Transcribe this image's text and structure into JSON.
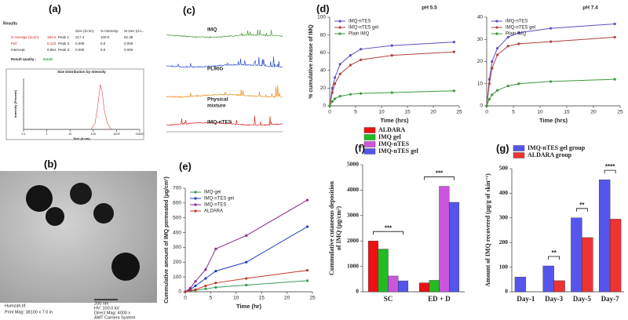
{
  "panel_labels": [
    "(a)",
    "(b)",
    "(c)",
    "(d)",
    "(e)",
    "(f)",
    "(g)"
  ],
  "dls": {
    "heading": "Results",
    "columns": [
      "Size (d.nm):",
      "% Intensity:",
      "St Dev (d.n..."
    ],
    "summary": [
      [
        "Z-Average (d.nm):",
        "190.5"
      ],
      [
        "PdI:",
        "0.123"
      ],
      [
        "Intercept:",
        "0.954"
      ]
    ],
    "peaks": [
      [
        "Peak 1:",
        "217.4",
        "100.0",
        "82.38"
      ],
      [
        "Peak 2:",
        "0.000",
        "0.0",
        "0.000"
      ],
      [
        "Peak 3:",
        "0.000",
        "0.0",
        "0.000"
      ]
    ],
    "quality": [
      "Result quality :",
      "Good"
    ]
  },
  "tem": {
    "file": "Humzah.tif",
    "print_mag": "Print Mag: 38100 x 7.0 in",
    "scale": "200 nm",
    "hv": "HV: 100.0 kV",
    "direct_mag": "Direct Mag: 4000 x",
    "camera": "AMT Camera System"
  },
  "ftir": {
    "labels": [
      [
        "IMQ"
      ],
      [
        "PL90G"
      ],
      [
        "Physical",
        "mixture"
      ],
      [
        "IMQ-nTES"
      ]
    ]
  },
  "chart_data": [
    {
      "type": "line",
      "title": "Size Distribution by Intensity",
      "x_label": "Size (d.nm)",
      "y_label": "Intensity (Percent)",
      "log_x": true,
      "xlim": [
        0.1,
        10000
      ],
      "xticks": [
        0.1,
        1,
        10,
        100,
        1000,
        10000
      ],
      "ylim": [
        0,
        16
      ],
      "x": [
        80,
        120,
        160,
        200,
        240,
        300,
        400,
        600
      ],
      "values": [
        0,
        2,
        8,
        14,
        12,
        6,
        2,
        0
      ],
      "color": "#e04040"
    },
    {
      "type": "line",
      "title": "pH 5.5",
      "x_label": "Time (hrs)",
      "y_label": "% cumulative release of IMQ",
      "xlim": [
        0,
        25
      ],
      "xticks": [
        0,
        5,
        10,
        15,
        20,
        25
      ],
      "ylim": [
        0,
        100
      ],
      "yticks": [
        0,
        20,
        40,
        60,
        80,
        100
      ],
      "legend": "upper left",
      "x": [
        0,
        0.5,
        1,
        2,
        4,
        6,
        12,
        24
      ],
      "series": [
        {
          "name": "IMQ-nTES",
          "color": "#5b4fbf",
          "values": [
            0,
            20,
            32,
            47,
            57,
            64,
            68,
            72
          ]
        },
        {
          "name": "IMQ-nTES gel",
          "color": "#b0413e",
          "values": [
            0,
            15,
            25,
            36,
            46,
            52,
            57,
            61
          ]
        },
        {
          "name": "Plain IMQ",
          "color": "#3a9a3a",
          "values": [
            0,
            5,
            8,
            11,
            13,
            14,
            15,
            17
          ]
        }
      ]
    },
    {
      "type": "line",
      "title": "pH 7.4",
      "x_label": "Time (hrs)",
      "xlim": [
        0,
        25
      ],
      "xticks": [
        0,
        5,
        10,
        15,
        20,
        25
      ],
      "ylim": [
        0,
        40
      ],
      "yticks": [
        0,
        10,
        20,
        30,
        40
      ],
      "legend": "upper left",
      "x": [
        0,
        0.5,
        1,
        2,
        4,
        6,
        12,
        24
      ],
      "series": [
        {
          "name": "IMQ-nTES",
          "color": "#5b4fbf",
          "values": [
            0,
            12,
            20,
            26,
            31,
            33,
            35,
            37
          ]
        },
        {
          "name": "IMQ-nTES gel",
          "color": "#b0413e",
          "values": [
            0,
            10,
            17,
            23,
            27,
            28,
            29,
            31
          ]
        },
        {
          "name": "Plain IMQ",
          "color": "#3a9a3a",
          "values": [
            0,
            3,
            5,
            7,
            9,
            10,
            11,
            12
          ]
        }
      ]
    },
    {
      "type": "line",
      "x_label": "Time (hr)",
      "y_label": "Cummulative amount of IMQ permeated  (µg/cm²)",
      "xlim": [
        0,
        25
      ],
      "xticks": [
        0,
        5,
        10,
        15,
        20,
        25
      ],
      "ylim": [
        0,
        700
      ],
      "yticks": [
        0,
        100,
        200,
        300,
        400,
        500,
        600,
        700
      ],
      "legend": "upper left",
      "x": [
        0,
        1,
        2,
        4,
        6,
        12,
        24
      ],
      "series": [
        {
          "name": "IMQ-gel",
          "color": "#3a9a5a",
          "values": [
            0,
            5,
            10,
            20,
            30,
            45,
            75
          ]
        },
        {
          "name": "IMQ-nTES gel",
          "color": "#1f3fbf",
          "values": [
            0,
            15,
            40,
            90,
            140,
            200,
            440
          ]
        },
        {
          "name": "IMQ-nTES",
          "color": "#8a2a8a",
          "values": [
            0,
            25,
            70,
            150,
            290,
            380,
            620
          ]
        },
        {
          "name": "ALDARA",
          "color": "#c0392b",
          "values": [
            0,
            8,
            15,
            40,
            60,
            90,
            145
          ]
        }
      ]
    },
    {
      "type": "bar",
      "y_label": [
        "Cummulative cutaneous deposition",
        "of IMQ (µg/cm²)"
      ],
      "categories": [
        "SC",
        "ED + D"
      ],
      "ylim": [
        0,
        5000
      ],
      "yticks": [
        0,
        1000,
        2000,
        3000,
        4000,
        5000
      ],
      "legend": "top",
      "series": [
        {
          "name": "ALDARA",
          "color": "#ee1111",
          "values": [
            2000,
            350
          ]
        },
        {
          "name": "IMQ gel",
          "color": "#22bb22",
          "values": [
            1680,
            450
          ]
        },
        {
          "name": "IMQ-nTES",
          "color": "#cc55dd",
          "values": [
            620,
            4150
          ]
        },
        {
          "name": "IMQ-nTES gel",
          "color": "#5555ee",
          "values": [
            430,
            3520
          ]
        }
      ],
      "annotations": [
        "***",
        "***"
      ]
    },
    {
      "type": "bar",
      "y_label": "Amount of IMQ recovered (µg/g of skin⁻¹)",
      "categories": [
        "Day-1",
        "Day-3",
        "Day-5",
        "Day-7"
      ],
      "ylim": [
        0,
        500
      ],
      "yticks": [
        0,
        100,
        200,
        300,
        400,
        500
      ],
      "legend": "top",
      "series": [
        {
          "name": "IMQ-nTES gel group",
          "color": "#5555ee",
          "values": [
            60,
            105,
            300,
            455
          ]
        },
        {
          "name": "ALDARA group",
          "color": "#ee3333",
          "values": [
            null,
            45,
            220,
            295
          ]
        }
      ],
      "annotations": [
        "**",
        "**",
        "****"
      ]
    }
  ]
}
